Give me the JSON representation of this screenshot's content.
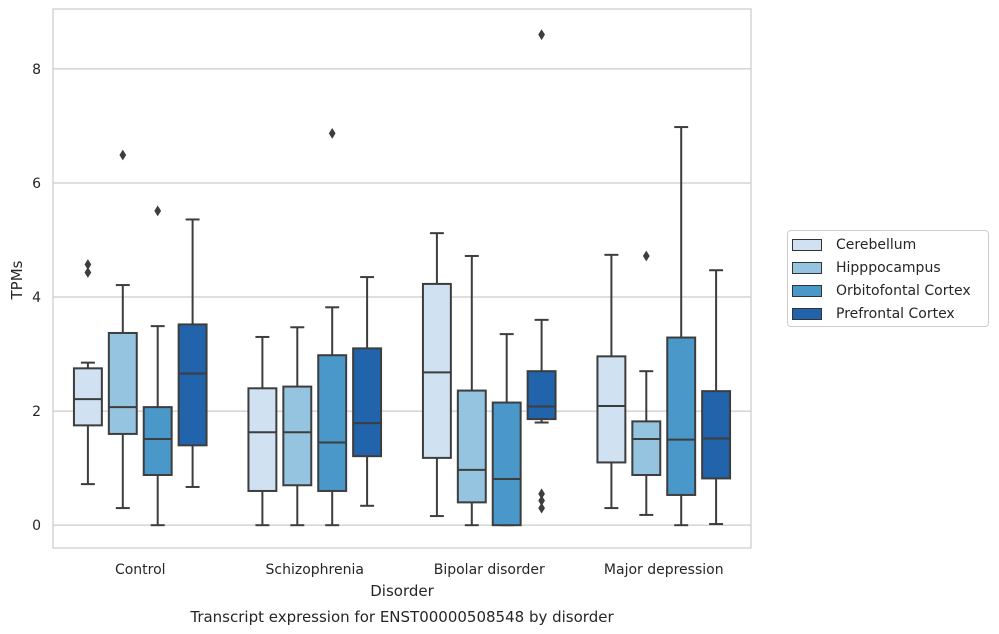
{
  "chart_data": {
    "type": "box",
    "title": "Transcript expression for ENST00000508548 by disorder",
    "xlabel": "Disorder",
    "ylabel": "TPMs",
    "ylim": [
      -0.4,
      9.05
    ],
    "yticks": [
      0,
      2,
      4,
      6,
      8
    ],
    "grid": "horizontal",
    "legend_position": "right",
    "categories": [
      "Control",
      "Schizophrenia",
      "Bipolar disorder",
      "Major depression"
    ],
    "series": [
      {
        "name": "Cerebellum",
        "color": "#d0e1f2",
        "boxes": [
          {
            "whislo": 0.72,
            "q1": 1.75,
            "med": 2.21,
            "q3": 2.75,
            "whishi": 2.85,
            "fliers": [
              4.43,
              4.57
            ]
          },
          {
            "whislo": 0.0,
            "q1": 0.6,
            "med": 1.63,
            "q3": 2.4,
            "whishi": 3.3,
            "fliers": []
          },
          {
            "whislo": 0.16,
            "q1": 1.18,
            "med": 2.68,
            "q3": 4.23,
            "whishi": 5.12,
            "fliers": []
          },
          {
            "whislo": 0.3,
            "q1": 1.1,
            "med": 2.09,
            "q3": 2.96,
            "whishi": 4.74,
            "fliers": []
          }
        ]
      },
      {
        "name": "Hipppocampus",
        "color": "#94c4df",
        "boxes": [
          {
            "whislo": 0.3,
            "q1": 1.6,
            "med": 2.07,
            "q3": 3.37,
            "whishi": 4.21,
            "fliers": [
              6.49
            ]
          },
          {
            "whislo": 0.0,
            "q1": 0.7,
            "med": 1.63,
            "q3": 2.43,
            "whishi": 3.47,
            "fliers": []
          },
          {
            "whislo": 0.0,
            "q1": 0.4,
            "med": 0.97,
            "q3": 2.36,
            "whishi": 4.72,
            "fliers": []
          },
          {
            "whislo": 0.18,
            "q1": 0.88,
            "med": 1.51,
            "q3": 1.82,
            "whishi": 2.7,
            "fliers": [
              4.72
            ]
          }
        ]
      },
      {
        "name": "Orbitofontal Cortex",
        "color": "#4a98c9",
        "boxes": [
          {
            "whislo": 0.0,
            "q1": 0.88,
            "med": 1.51,
            "q3": 2.07,
            "whishi": 3.49,
            "fliers": [
              5.51
            ]
          },
          {
            "whislo": 0.0,
            "q1": 0.6,
            "med": 1.45,
            "q3": 2.98,
            "whishi": 3.82,
            "fliers": [
              6.87
            ]
          },
          {
            "whislo": 0.0,
            "q1": 0.0,
            "med": 0.81,
            "q3": 2.15,
            "whishi": 3.35,
            "fliers": []
          },
          {
            "whislo": 0.0,
            "q1": 0.53,
            "med": 1.5,
            "q3": 3.29,
            "whishi": 6.98,
            "fliers": []
          }
        ]
      },
      {
        "name": "Prefrontal Cortex",
        "color": "#2164ab",
        "boxes": [
          {
            "whislo": 0.67,
            "q1": 1.4,
            "med": 2.66,
            "q3": 3.52,
            "whishi": 5.36,
            "fliers": []
          },
          {
            "whislo": 0.34,
            "q1": 1.21,
            "med": 1.79,
            "q3": 3.1,
            "whishi": 4.35,
            "fliers": []
          },
          {
            "whislo": 1.8,
            "q1": 1.86,
            "med": 2.08,
            "q3": 2.7,
            "whishi": 3.6,
            "fliers": [
              0.3,
              0.43,
              0.55,
              8.6
            ]
          },
          {
            "whislo": 0.02,
            "q1": 0.82,
            "med": 1.52,
            "q3": 2.35,
            "whishi": 4.47,
            "fliers": []
          }
        ]
      }
    ]
  }
}
